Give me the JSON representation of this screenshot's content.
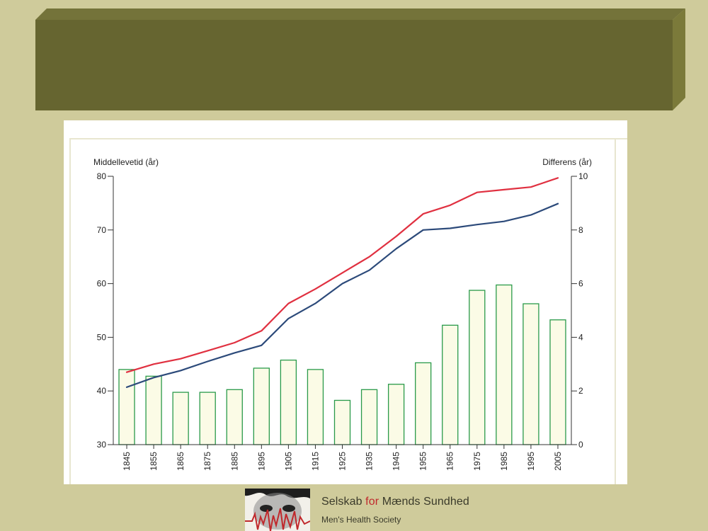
{
  "colors": {
    "background": "#cfcb9b",
    "banner": "#666530",
    "banner_side": "#7b7a3a",
    "women_line": "#e03040",
    "men_line": "#2c4a7a",
    "bar_outline": "#2a9a4a",
    "bar_fill": "#fbfbe6",
    "chart_frame": "#e8e6d0",
    "logo_accent": "#c0282c"
  },
  "chart_data": {
    "type": "bar+line",
    "title": "",
    "ylabel_left": "Middellevetid (år)",
    "ylabel_right": "Differens (år)",
    "xlabel": "",
    "categories": [
      "1845",
      "1855",
      "1865",
      "1875",
      "1885",
      "1895",
      "1905",
      "1915",
      "1925",
      "1935",
      "1945",
      "1955",
      "1965",
      "1975",
      "1985",
      "1995",
      "2005"
    ],
    "ylim_left": [
      30,
      80
    ],
    "ylim_right": [
      0,
      10
    ],
    "yticks_left": [
      "30",
      "40",
      "50",
      "60",
      "70",
      "80"
    ],
    "yticks_right": [
      "0",
      "2",
      "4",
      "6",
      "8",
      "10"
    ],
    "grid": false,
    "series": [
      {
        "axis": "left",
        "type": "line",
        "color": "#e03040",
        "values": [
          43.5,
          45.0,
          46.0,
          47.5,
          49.0,
          51.2,
          56.3,
          59.0,
          62.0,
          65.0,
          68.8,
          73.0,
          74.6,
          77.0,
          77.5,
          78.0,
          79.7
        ]
      },
      {
        "axis": "left",
        "type": "line",
        "color": "#2c4a7a",
        "values": [
          40.7,
          42.5,
          43.8,
          45.5,
          47.1,
          48.5,
          53.5,
          56.3,
          60.0,
          62.5,
          66.5,
          70.0,
          70.3,
          71.0,
          71.6,
          72.8,
          74.9
        ]
      },
      {
        "axis": "right",
        "type": "bar",
        "color": "#2a9a4a",
        "values": [
          2.8,
          2.55,
          1.95,
          1.95,
          2.05,
          2.85,
          3.15,
          2.8,
          1.65,
          2.05,
          2.25,
          3.05,
          4.45,
          5.75,
          5.95,
          5.25,
          4.65
        ]
      }
    ]
  },
  "footer": {
    "org_name_pre": "Selskab ",
    "org_name_accent": "for",
    "org_name_post": " Mænds Sundhed",
    "org_subtitle": "Men's Health Society"
  }
}
